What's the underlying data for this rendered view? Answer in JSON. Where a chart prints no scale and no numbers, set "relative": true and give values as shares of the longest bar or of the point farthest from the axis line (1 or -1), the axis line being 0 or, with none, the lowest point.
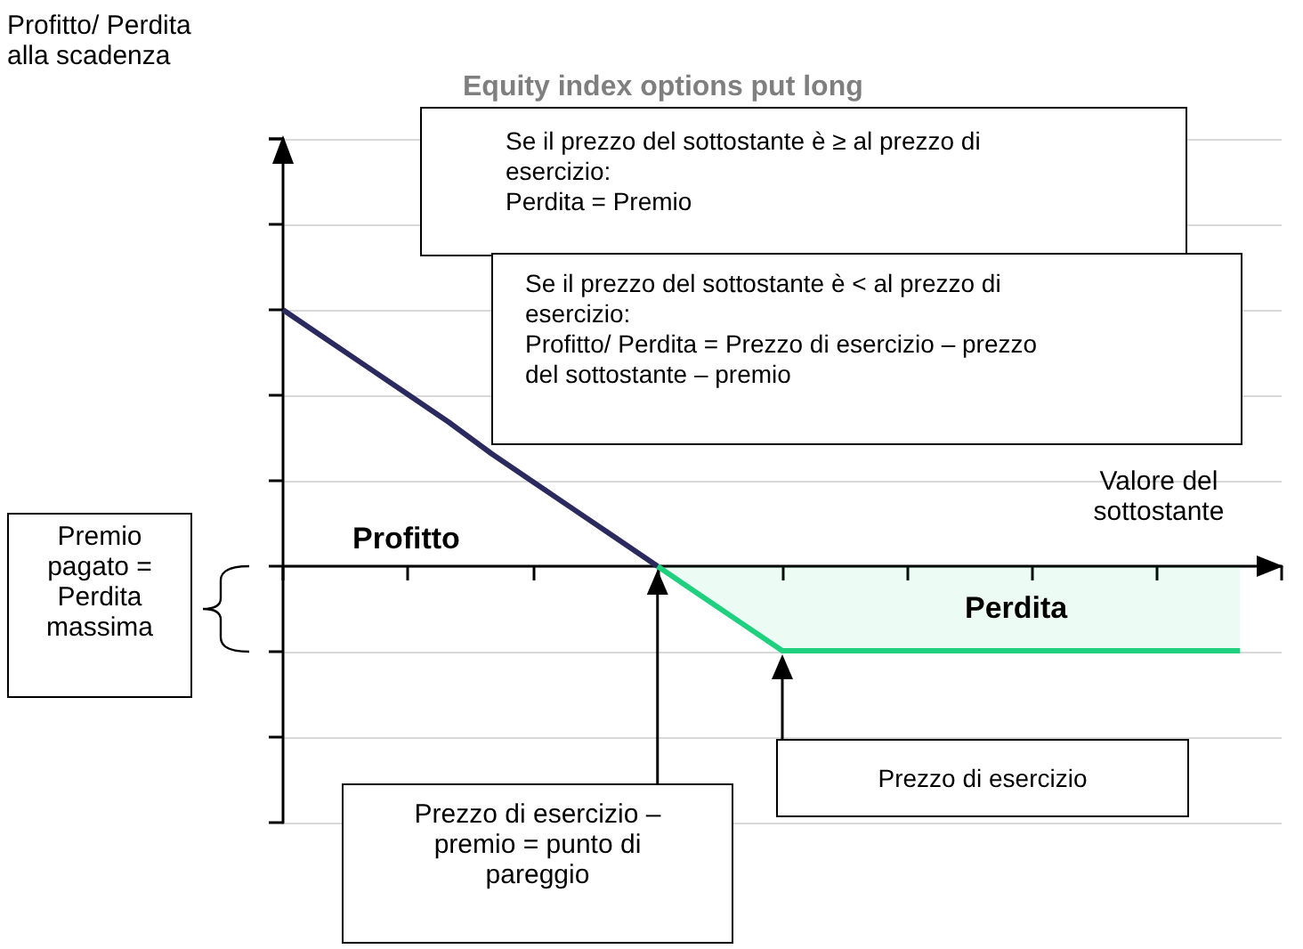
{
  "chart_data": {
    "type": "line",
    "title": "Equity index options put long",
    "xlabel": "Valore del sottostante",
    "relative": true,
    "grid": "y",
    "marker": "none",
    "categories": [
      null,
      null,
      null,
      null,
      null,
      null,
      null,
      null,
      null,
      null,
      null,
      null,
      null,
      null,
      null,
      null,
      null,
      null,
      null,
      null,
      null,
      null,
      null,
      null,
      null
    ],
    "series": [
      {
        "color": "#2b2a5e",
        "values": [
          1,
          0.89,
          0.78,
          0.67,
          0.56,
          0.44,
          0.33,
          0.22,
          0.11,
          0,
          null,
          null,
          null,
          null,
          null,
          null,
          null,
          null,
          null,
          null,
          null,
          null,
          null,
          null,
          null
        ]
      },
      {
        "type": "area",
        "color": "#1fd07e",
        "values": [
          null,
          null,
          null,
          null,
          null,
          null,
          null,
          null,
          null,
          0,
          -0.11,
          -0.22,
          -0.33,
          -0.33,
          -0.33,
          -0.33,
          -0.33,
          -0.33,
          -0.33,
          -0.33,
          -0.33,
          -0.33,
          -0.33,
          -0.33,
          null
        ]
      }
    ],
    "annotations": [
      "Profitto",
      "Perdita",
      "Premio pagato = Perdita massima",
      "Se il prezzo del sottostante è ≥ al prezzo di esercizio:\nPerdita = Premio",
      "Se il prezzo del sottostante è < al prezzo di esercizio:\nProfitto/ Perdita = Prezzo di esercizio – prezzo del sottostante – premio",
      "Prezzo di esercizio",
      "Prezzo di esercizio – premio = punto di pareggio",
      "Profitto/ Perdita alla scadenza"
    ]
  }
}
